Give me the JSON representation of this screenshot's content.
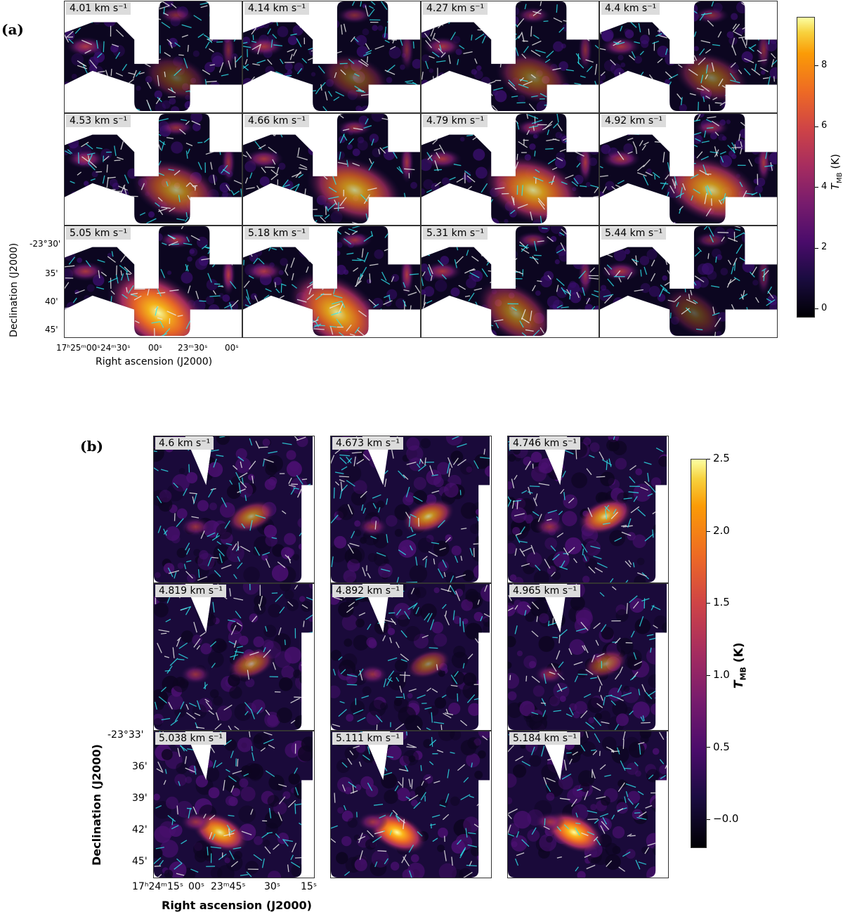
{
  "figure": {
    "panel_a_label": "(a)",
    "panel_b_label": "(b)"
  },
  "panel_a": {
    "velocities": [
      "4.01 km s⁻¹",
      "4.14 km s⁻¹",
      "4.27 km s⁻¹",
      "4.4 km s⁻¹",
      "4.53 km s⁻¹",
      "4.66 km s⁻¹",
      "4.79 km s⁻¹",
      "4.92 km s⁻¹",
      "5.05 km s⁻¹",
      "5.18 km s⁻¹",
      "5.31 km s⁻¹",
      "5.44 km s⁻¹"
    ],
    "peak_intensity_K": [
      3.5,
      3.8,
      4.6,
      4.5,
      6.2,
      7.3,
      7.8,
      7.6,
      9.3,
      8.4,
      5.6,
      3.2
    ],
    "ytick_labels": [
      "-23°30'",
      "35'",
      "40'",
      "45'"
    ],
    "xtick_labels": [
      "17ʰ25ᵐ00ˢ",
      "24ᵐ30ˢ",
      "00ˢ",
      "23ᵐ30ˢ",
      "00ˢ"
    ],
    "ylabel": "Declination (J2000)",
    "xlabel": "Right ascension (J2000)",
    "colorbar": {
      "label": "T_MB (K)",
      "label_main": "T",
      "label_sub": "MB",
      "label_unit": " (K)",
      "ticks": [
        "0",
        "2",
        "4",
        "6",
        "8"
      ],
      "range": [
        -0.3,
        9.6
      ]
    }
  },
  "panel_b": {
    "velocities": [
      "4.6 km s⁻¹",
      "4.673 km s⁻¹",
      "4.746 km s⁻¹",
      "4.819 km s⁻¹",
      "4.892 km s⁻¹",
      "4.965 km s⁻¹",
      "5.038 km s⁻¹",
      "5.111 km s⁻¹",
      "5.184 km s⁻¹"
    ],
    "peak_intensity_K": [
      1.6,
      1.9,
      2.1,
      1.5,
      1.3,
      1.3,
      2.3,
      2.5,
      2.5
    ],
    "ytick_labels": [
      "-23°33'",
      "36'",
      "39'",
      "42'",
      "45'"
    ],
    "xtick_labels": [
      "17ʰ24ᵐ15ˢ",
      "00ˢ",
      "23ᵐ45ˢ",
      "30ˢ",
      "15ˢ"
    ],
    "ylabel": "Declination (J2000)",
    "xlabel": "Right ascension (J2000)",
    "colorbar": {
      "label": "T_MB (K)",
      "label_main": "T",
      "label_sub": "MB",
      "label_unit": " (K)",
      "ticks": [
        "−0.0",
        "0.5",
        "1.0",
        "1.5",
        "2.0",
        "2.5"
      ],
      "range": [
        -0.2,
        2.5
      ]
    }
  },
  "chart_data": [
    {
      "type": "heatmap",
      "title": "",
      "panel": "(a)",
      "xlabel": "Right ascension (J2000)",
      "ylabel": "Declination (J2000)",
      "colorbar_label": "T_MB (K)",
      "colorbar_range": [
        -0.3,
        9.6
      ],
      "colormap": "inferno",
      "vector_colors": [
        "#ffffff",
        "#00e5ee"
      ],
      "categories": [
        "4.01",
        "4.14",
        "4.27",
        "4.4",
        "4.53",
        "4.66",
        "4.79",
        "4.92",
        "5.05",
        "5.18",
        "5.31",
        "5.44"
      ],
      "series": [
        {
          "name": "",
          "values": [
            3.5,
            3.8,
            4.6,
            4.5,
            6.2,
            7.3,
            7.8,
            7.6,
            9.3,
            8.4,
            5.6,
            3.2
          ]
        }
      ],
      "grid": false
    },
    {
      "type": "heatmap",
      "title": "",
      "panel": "(b)",
      "xlabel": "Right ascension (J2000)",
      "ylabel": "Declination (J2000)",
      "colorbar_label": "T_MB (K)",
      "colorbar_range": [
        -0.2,
        2.5
      ],
      "colormap": "inferno",
      "vector_colors": [
        "#ffffff",
        "#00e5ee"
      ],
      "categories": [
        "4.6",
        "4.673",
        "4.746",
        "4.819",
        "4.892",
        "4.965",
        "5.038",
        "5.111",
        "5.184"
      ],
      "series": [
        {
          "name": "",
          "values": [
            1.6,
            1.9,
            2.1,
            1.5,
            1.3,
            1.3,
            2.3,
            2.5,
            2.5
          ]
        }
      ],
      "grid": false
    }
  ]
}
